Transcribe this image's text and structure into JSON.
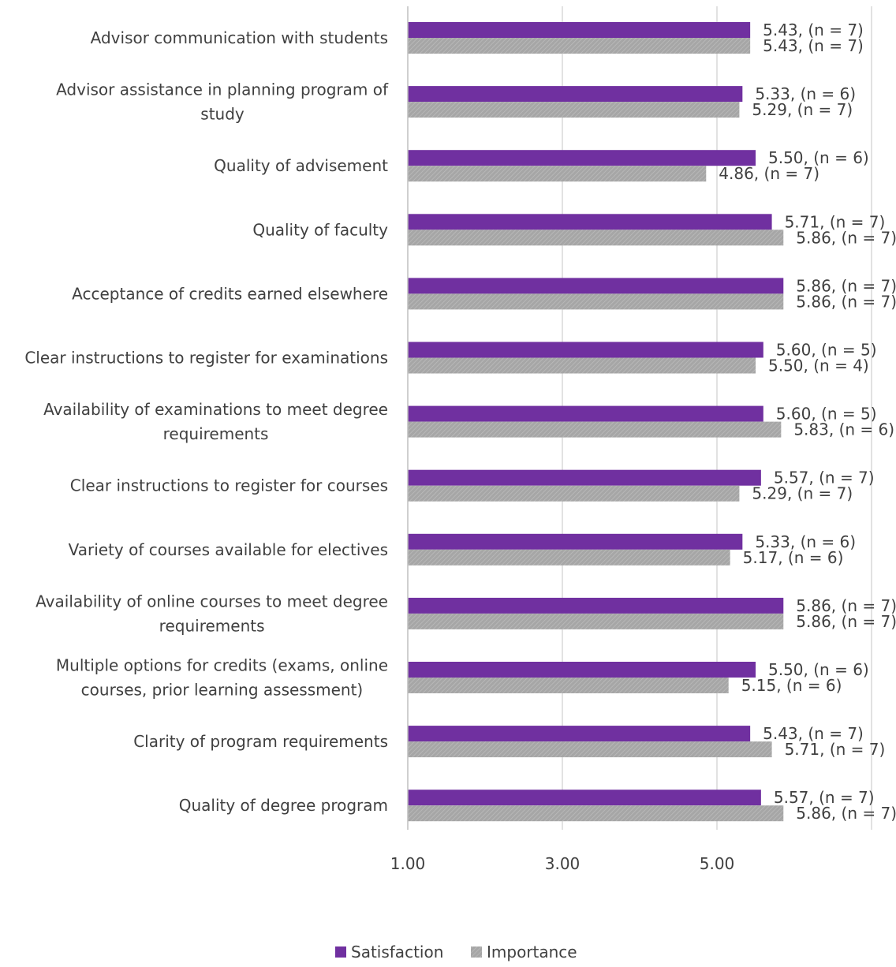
{
  "chart_data": {
    "type": "bar",
    "orientation": "horizontal",
    "categories": [
      [
        "Advisor communication with students"
      ],
      [
        "Advisor assistance in planning program of",
        "study"
      ],
      [
        "Quality of advisement"
      ],
      [
        "Quality of faculty"
      ],
      [
        "Acceptance of credits earned elsewhere"
      ],
      [
        "Clear instructions to register for examinations"
      ],
      [
        "Availability of examinations to meet degree",
        "requirements"
      ],
      [
        "Clear instructions to register for courses"
      ],
      [
        "Variety of courses available for electives"
      ],
      [
        "Availability of online courses to meet degree",
        "requirements"
      ],
      [
        "Multiple options for credits (exams, online",
        "courses, prior learning assessment)"
      ],
      [
        "Clarity of program requirements"
      ],
      [
        "Quality of degree program"
      ]
    ],
    "series": [
      {
        "name": "Satisfaction",
        "color": "#7030a0",
        "values": [
          5.43,
          5.33,
          5.5,
          5.71,
          5.86,
          5.6,
          5.6,
          5.57,
          5.33,
          5.86,
          5.5,
          5.43,
          5.57
        ],
        "labels": [
          "5.43, (n = 7)",
          "5.33, (n = 6)",
          "5.50, (n = 6)",
          "5.71, (n = 7)",
          "5.86, (n = 7)",
          "5.60, (n = 5)",
          "5.60, (n = 5)",
          "5.57, (n = 7)",
          "5.33, (n = 6)",
          "5.86, (n = 7)",
          "5.50, (n = 6)",
          "5.43, (n = 7)",
          "5.57, (n = 7)"
        ]
      },
      {
        "name": "Importance",
        "color": "#a6a6a6",
        "values": [
          5.43,
          5.29,
          4.86,
          5.86,
          5.86,
          5.5,
          5.83,
          5.29,
          5.17,
          5.86,
          5.15,
          5.71,
          5.86
        ],
        "labels": [
          "5.43, (n = 7)",
          "5.29, (n = 7)",
          "4.86, (n = 7)",
          "5.86, (n = 7)",
          "5.86, (n = 7)",
          "5.50, (n = 4)",
          "5.83, (n = 6)",
          "5.29, (n = 7)",
          "5.17, (n = 6)",
          "5.86, (n = 7)",
          "5.15, (n = 6)",
          "5.71, (n = 7)",
          "5.86, (n = 7)"
        ]
      }
    ],
    "xaxis": {
      "min": 1.0,
      "max": 7.0,
      "ticks": [
        1.0,
        3.0,
        5.0
      ],
      "tick_labels": [
        "1.00",
        "3.00",
        "5.00"
      ],
      "gridlines": [
        3.0,
        5.0,
        7.0
      ]
    },
    "grid": true,
    "legend": {
      "position": "bottom",
      "items": [
        "Satisfaction",
        "Importance"
      ]
    }
  }
}
